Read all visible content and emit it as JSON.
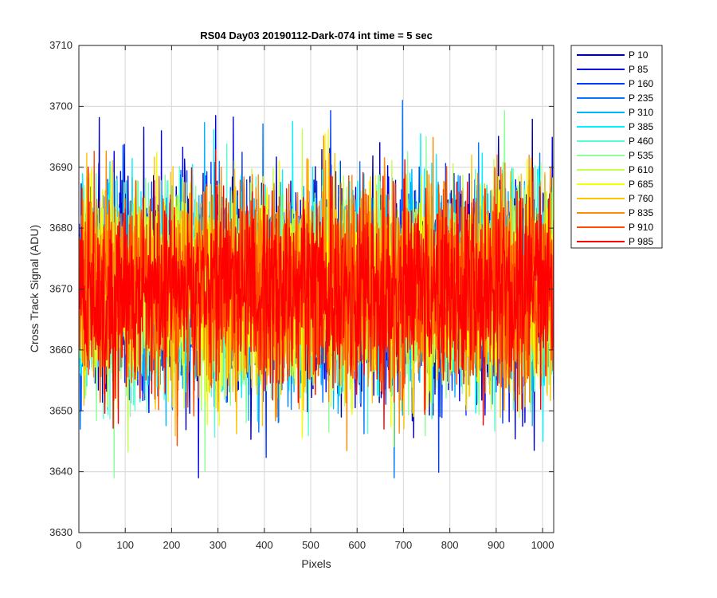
{
  "chart_data": {
    "type": "line",
    "title": "RS04 Day03 20190112-Dark-074 int time = 5 sec",
    "xlabel": "Pixels",
    "ylabel": "Cross Track Signal (ADU)",
    "xlim": [
      0,
      1024
    ],
    "ylim": [
      3630,
      3710
    ],
    "xticks": [
      0,
      100,
      200,
      300,
      400,
      500,
      600,
      700,
      800,
      900,
      1000
    ],
    "yticks": [
      3630,
      3640,
      3650,
      3660,
      3670,
      3680,
      3690,
      3700,
      3710
    ],
    "grid": true,
    "legend_position": "outside-right",
    "noise_model": {
      "mean": 3670,
      "std": 8,
      "min": 3639,
      "max": 3701,
      "points_per_series": 1024
    },
    "series": [
      {
        "name": "P 10",
        "color": "#0000a8"
      },
      {
        "name": "P 85",
        "color": "#0000e6"
      },
      {
        "name": "P 160",
        "color": "#0039ff"
      },
      {
        "name": "P 235",
        "color": "#0078ff"
      },
      {
        "name": "P 310",
        "color": "#00b4ff"
      },
      {
        "name": "P 385",
        "color": "#00f0ff"
      },
      {
        "name": "P 460",
        "color": "#55ffd0"
      },
      {
        "name": "P 535",
        "color": "#8cff97"
      },
      {
        "name": "P 610",
        "color": "#c2ff4f"
      },
      {
        "name": "P 685",
        "color": "#f6ff00"
      },
      {
        "name": "P 760",
        "color": "#ffc500"
      },
      {
        "name": "P 835",
        "color": "#ff8a00"
      },
      {
        "name": "P 910",
        "color": "#ff4b00"
      },
      {
        "name": "P 985",
        "color": "#ff0000"
      }
    ]
  }
}
